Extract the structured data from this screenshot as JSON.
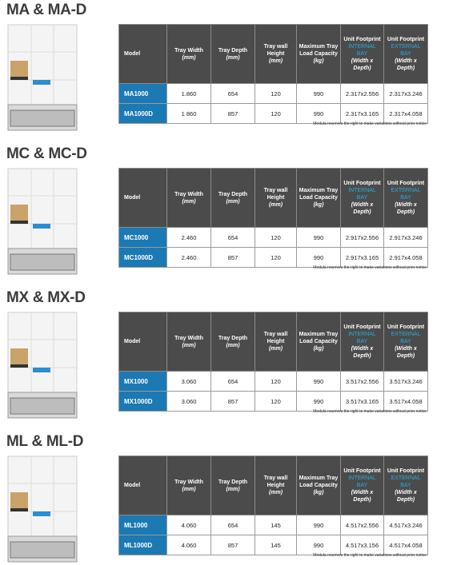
{
  "sections": [
    {
      "title": "MA & MA-D",
      "table": {
        "headers": [
          {
            "text": "Model"
          },
          {
            "text": "Tray Width",
            "unit": "(mm)"
          },
          {
            "text": "Tray Depth",
            "unit": "(mm)"
          },
          {
            "text": "Tray wall Height",
            "unit": "(mm)"
          },
          {
            "text": "Maximum Tray Load Capacity",
            "unit": "(kg)"
          },
          {
            "text": "Unit Footprint",
            "bay": "INTERNAL BAY",
            "unit": "(Width x Depth)"
          },
          {
            "text": "Unit Footprint",
            "bay": "EXTERNAL BAY",
            "unit": "(Width x Depth)"
          }
        ],
        "rows": [
          [
            "MA1000",
            "1.860",
            "654",
            "120",
            "990",
            "2.317x2.556",
            "2.317x3.246"
          ],
          [
            "MA1000D",
            "1 860",
            "857",
            "120",
            "990",
            "2.317x3.165",
            "2.317x4.058"
          ]
        ]
      },
      "note": "Modula reserves the right to make variations without prior notice"
    },
    {
      "title": "MC & MC-D",
      "table": {
        "headers": [
          {
            "text": "Model"
          },
          {
            "text": "Tray Width",
            "unit": "(mm)"
          },
          {
            "text": "Tray Depth",
            "unit": "(mm)"
          },
          {
            "text": "Tray wall Height",
            "unit": "(mm)"
          },
          {
            "text": "Maximum Tray Load Capacity",
            "unit": "(kg)"
          },
          {
            "text": "Unit Footprint",
            "bay": "INTERNAL BAY",
            "unit": "(Width x Depth)"
          },
          {
            "text": "Unit Footprint",
            "bay": "EXTERNAL BAY",
            "unit": "(Width x Depth)"
          }
        ],
        "rows": [
          [
            "MC1000",
            "2.460",
            "654",
            "120",
            "990",
            "2.917x2.556",
            "2.917x3.246"
          ],
          [
            "MC1000D",
            "2.460",
            "857",
            "120",
            "990",
            "2.917x3.165",
            "2.917x4.058"
          ]
        ]
      },
      "note": "Modula reserves the right to make variations without prior notice"
    },
    {
      "title": "MX & MX-D",
      "table": {
        "headers": [
          {
            "text": "Model"
          },
          {
            "text": "Tray Width",
            "unit": "(mm)"
          },
          {
            "text": "Tray Depth",
            "unit": "(mm)"
          },
          {
            "text": "Tray wall Height",
            "unit": "(mm)"
          },
          {
            "text": "Maximum Tray Load Capacity",
            "unit": "(kg)"
          },
          {
            "text": "Unit Footprint",
            "bay": "INTERNAL BAY",
            "unit": "(Width x Depth)"
          },
          {
            "text": "Unit Footprint",
            "bay": "EXTERNAL BAY",
            "unit": "(Width x Depth)"
          }
        ],
        "rows": [
          [
            "MX1000",
            "3.060",
            "654",
            "120",
            "990",
            "3.517x2.556",
            "3.517x3.246"
          ],
          [
            "MX1000D",
            "3.060",
            "857",
            "120",
            "990",
            "3.517x3.165",
            "3.517x4.058"
          ]
        ]
      },
      "note": "Modula reserves the right to make variations without prior notice"
    },
    {
      "title": "ML & ML-D",
      "table": {
        "headers": [
          {
            "text": "Model"
          },
          {
            "text": "Tray Width",
            "unit": "(mm)"
          },
          {
            "text": "Tray Depth",
            "unit": "(mm)"
          },
          {
            "text": "Tray wall Height",
            "unit": "(mm)"
          },
          {
            "text": "Maximum Tray Load Capacity",
            "unit": "(kg)"
          },
          {
            "text": "Unit Footprint",
            "bay": "INTERNAL BAY",
            "unit": "(Width x Depth)"
          },
          {
            "text": "Unit Footprint",
            "bay": "EXTERNAL BAY",
            "unit": "(Width x Depth)"
          }
        ],
        "rows": [
          [
            "ML1000",
            "4.060",
            "654",
            "145",
            "990",
            "4.517x2.556",
            "4.517x3.246"
          ],
          [
            "ML1000D",
            "4.060",
            "857",
            "145",
            "990",
            "4.517x3.156",
            "4.517x4.058"
          ]
        ]
      },
      "note": "Modula reserves the right to make variations without prior notice"
    }
  ]
}
